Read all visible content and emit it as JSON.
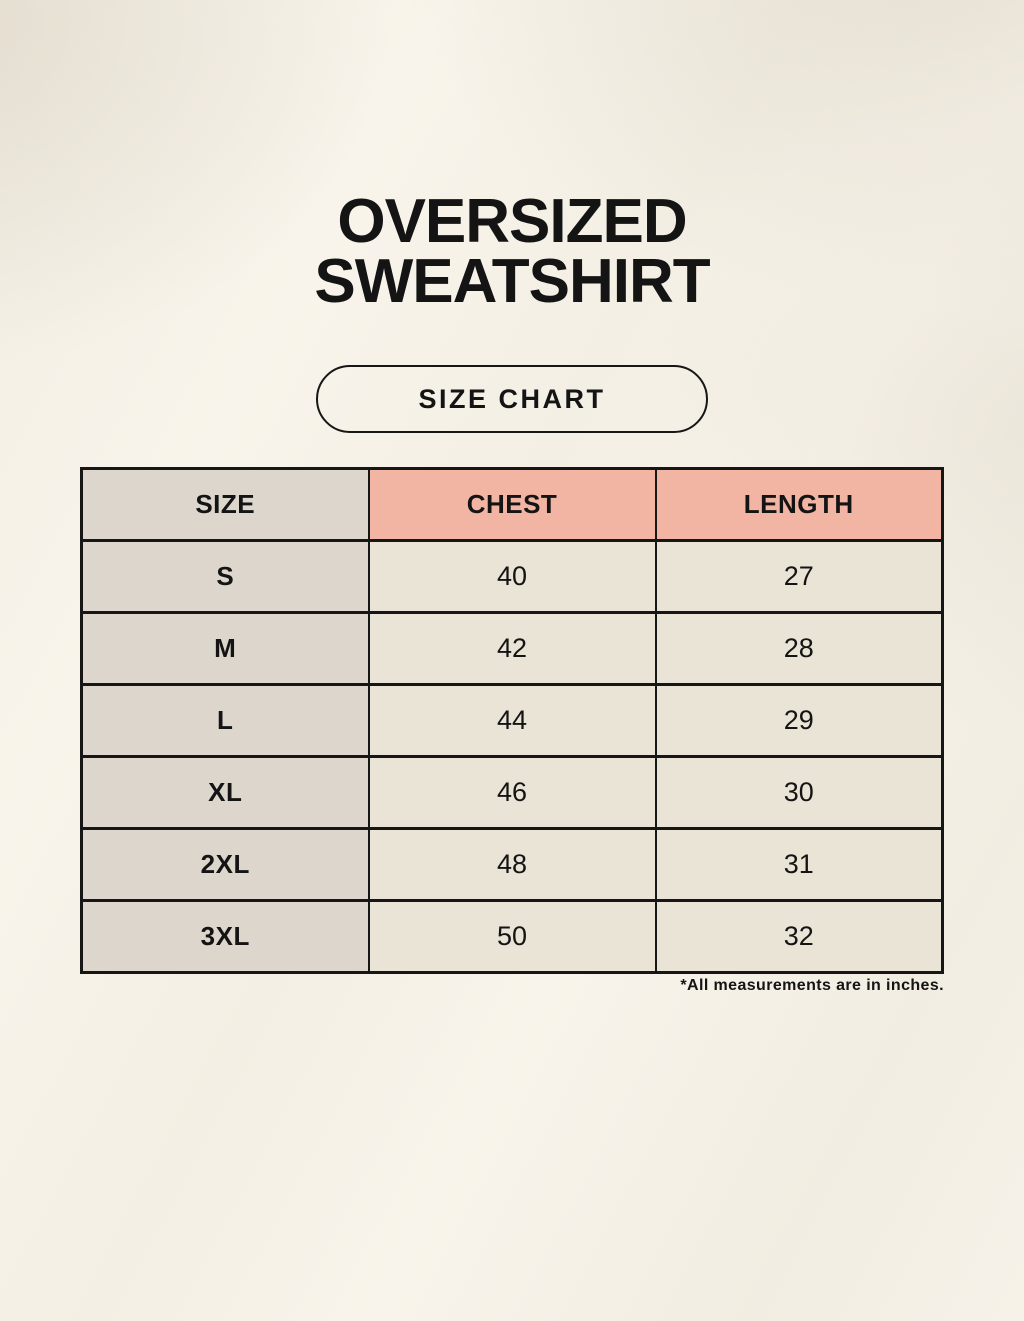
{
  "header": {
    "title_line1": "OVERSIZED",
    "title_line2": "SWEATSHIRT",
    "size_chart_badge": "SIZE CHART"
  },
  "table": {
    "columns": [
      "SIZE",
      "CHEST",
      "LENGTH"
    ],
    "rows": [
      {
        "size": "S",
        "chest": "40",
        "length": "27"
      },
      {
        "size": "M",
        "chest": "42",
        "length": "28"
      },
      {
        "size": "L",
        "chest": "44",
        "length": "29"
      },
      {
        "size": "XL",
        "chest": "46",
        "length": "30"
      },
      {
        "size": "2XL",
        "chest": "48",
        "length": "31"
      },
      {
        "size": "3XL",
        "chest": "50",
        "length": "32"
      }
    ],
    "footnote": "*All measurements are in inches."
  },
  "chart_data": {
    "type": "table",
    "title": "OVERSIZED SWEATSHIRT",
    "columns": [
      "SIZE",
      "CHEST",
      "LENGTH"
    ],
    "rows": [
      [
        "S",
        40,
        27
      ],
      [
        "M",
        42,
        28
      ],
      [
        "L",
        44,
        29
      ],
      [
        "XL",
        46,
        30
      ],
      [
        "2XL",
        48,
        31
      ],
      [
        "3XL",
        50,
        32
      ]
    ],
    "units": "inches"
  },
  "colors": {
    "background": "#f5f1e8",
    "size_column_bg": "#dcd6cc",
    "accent_header_bg": "#f2b4a3",
    "data_cell_bg": "#eae4d7",
    "border": "#161616",
    "text": "#141414"
  }
}
